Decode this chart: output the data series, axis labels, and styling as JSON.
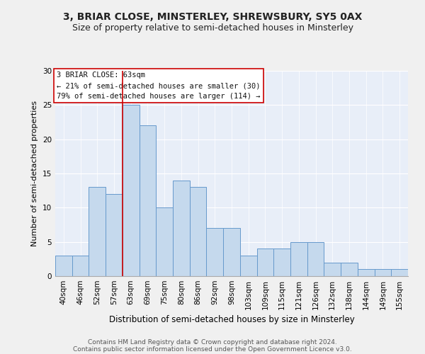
{
  "title1": "3, BRIAR CLOSE, MINSTERLEY, SHREWSBURY, SY5 0AX",
  "title2": "Size of property relative to semi-detached houses in Minsterley",
  "xlabel": "Distribution of semi-detached houses by size in Minsterley",
  "ylabel": "Number of semi-detached properties",
  "categories": [
    "40sqm",
    "46sqm",
    "52sqm",
    "57sqm",
    "63sqm",
    "69sqm",
    "75sqm",
    "80sqm",
    "86sqm",
    "92sqm",
    "98sqm",
    "103sqm",
    "109sqm",
    "115sqm",
    "121sqm",
    "126sqm",
    "132sqm",
    "138sqm",
    "144sqm",
    "149sqm",
    "155sqm"
  ],
  "values": [
    3,
    3,
    13,
    12,
    25,
    22,
    10,
    14,
    13,
    7,
    7,
    3,
    4,
    4,
    5,
    5,
    2,
    2,
    1,
    1,
    1
  ],
  "bar_color": "#c5d9ed",
  "bar_edge_color": "#6699cc",
  "highlight_index": 4,
  "highlight_color": "#cc0000",
  "annotation_text": "3 BRIAR CLOSE: 63sqm\n← 21% of semi-detached houses are smaller (30)\n79% of semi-detached houses are larger (114) →",
  "annotation_box_color": "#ffffff",
  "annotation_border_color": "#cc0000",
  "ylim": [
    0,
    30
  ],
  "yticks": [
    0,
    5,
    10,
    15,
    20,
    25,
    30
  ],
  "background_color": "#e8eef8",
  "fig_background_color": "#f0f0f0",
  "grid_color": "#ffffff",
  "footer1": "Contains HM Land Registry data © Crown copyright and database right 2024.",
  "footer2": "Contains public sector information licensed under the Open Government Licence v3.0.",
  "title1_fontsize": 10,
  "title2_fontsize": 9,
  "xlabel_fontsize": 8.5,
  "ylabel_fontsize": 8,
  "tick_fontsize": 7.5,
  "footer_fontsize": 6.5,
  "annotation_fontsize": 7.5
}
